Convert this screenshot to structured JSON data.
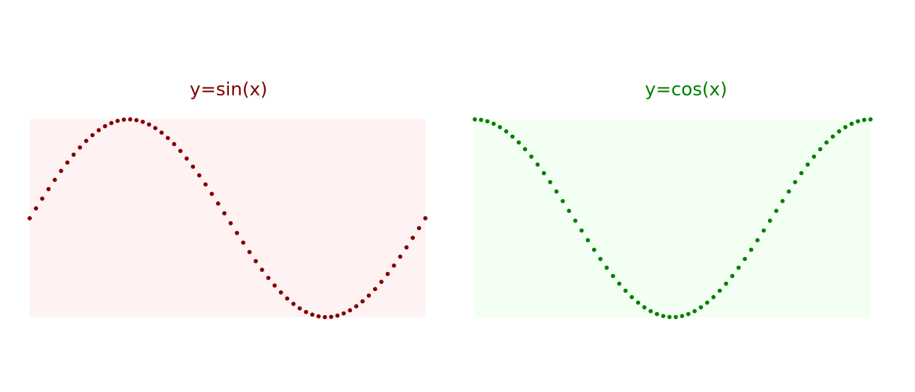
{
  "colors": {
    "sin_color": "#800000",
    "sin_bg": "#fff2f2",
    "cos_color": "#008000",
    "cos_bg": "#f2fff2"
  },
  "chart_data": [
    {
      "type": "scatter",
      "title": "y=sin(x)",
      "function": "sin",
      "x_range": [
        0,
        6.2832
      ],
      "ylim": [
        -1,
        1
      ],
      "n_points": 64,
      "grid": false,
      "axes_visible": false,
      "color": "#800000",
      "background": "#fff2f2"
    },
    {
      "type": "scatter",
      "title": "y=cos(x)",
      "function": "cos",
      "x_range": [
        0,
        6.2832
      ],
      "ylim": [
        -1,
        1
      ],
      "n_points": 64,
      "grid": false,
      "axes_visible": false,
      "color": "#008000",
      "background": "#f2fff2"
    }
  ]
}
